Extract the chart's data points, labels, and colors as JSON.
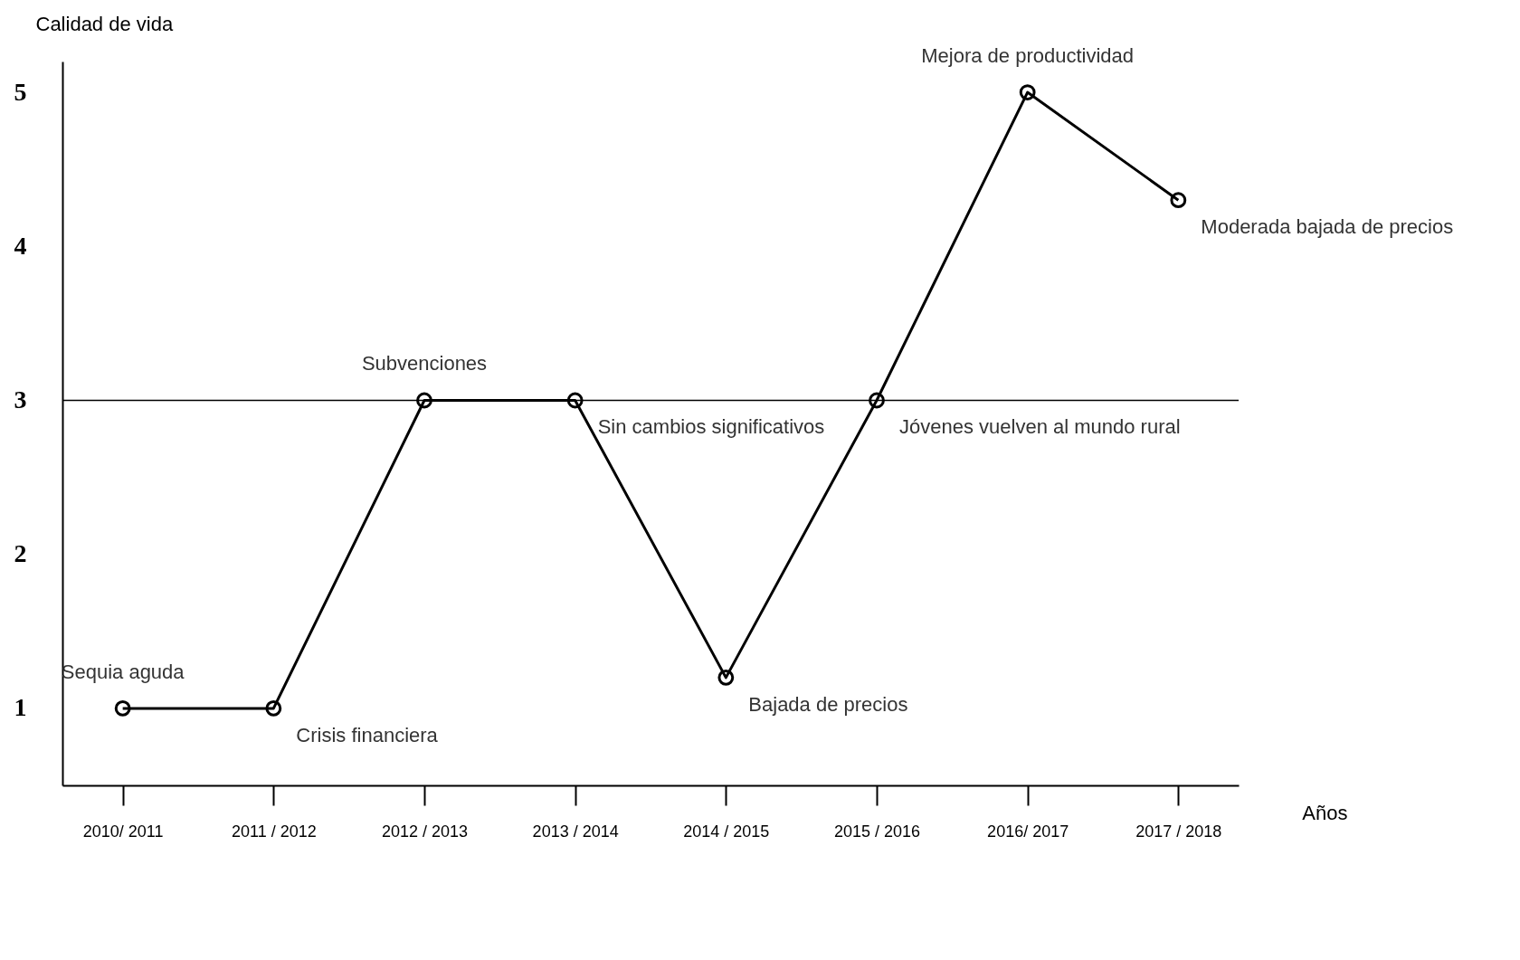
{
  "chart_data": {
    "type": "line",
    "ylabel": "Calidad de vida",
    "xlabel": "Años",
    "categories": [
      "2010/ 2011",
      "2011 / 2012",
      "2012 / 2013",
      "2013 / 2014",
      "2014 / 2015",
      "2015 / 2016",
      "2016/ 2017",
      "2017 / 2018"
    ],
    "series": [
      {
        "color": "#000000",
        "values": [
          1,
          1,
          3,
          3,
          1.2,
          3,
          5,
          4.3
        ]
      }
    ],
    "ylim": [
      0.5,
      5.2
    ],
    "yticks": [
      1,
      2,
      3,
      4,
      5
    ],
    "grid": false,
    "marker": "circle",
    "line_style": "solid",
    "ref_lines": [
      {
        "axis": "y",
        "value": 3,
        "color": "#000000"
      }
    ],
    "annotations": [
      {
        "text": "Sequia aguda",
        "x": "2010/ 2011",
        "y": 1
      },
      {
        "text": "Crisis financiera",
        "x": "2011 / 2012",
        "y": 1
      },
      {
        "text": "Subvenciones",
        "x": "2012 / 2013",
        "y": 3
      },
      {
        "text": "Sin cambios significativos",
        "x": "2013 / 2014",
        "y": 3
      },
      {
        "text": "Bajada de precios",
        "x": "2014 / 2015",
        "y": 1.2
      },
      {
        "text": "Jóvenes vuelven al mundo rural",
        "x": "2015 / 2016",
        "y": 3
      },
      {
        "text": "Mejora de productividad",
        "x": "2016/ 2017",
        "y": 5
      },
      {
        "text": "Moderada bajada de precios",
        "x": "2017 / 2018",
        "y": 4.3
      }
    ]
  }
}
